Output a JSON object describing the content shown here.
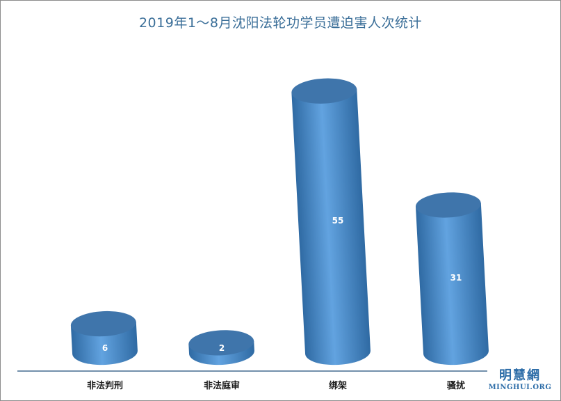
{
  "colors": {
    "title": "#3a6e98",
    "bar_dark": "#2f6aa3",
    "bar_light": "#62a3e0",
    "top_face": "#3f75ab",
    "axis": "#1f4e79",
    "watermark": "#2d6da8"
  },
  "watermark": {
    "cn": "明慧網",
    "en": "MINGHUI.ORG"
  },
  "chart_data": {
    "type": "bar",
    "style": "3d-cylinder",
    "title": "2019年1～8月沈阳法轮功学员遭迫害人次统计",
    "categories": [
      "非法判刑",
      "非法庭审",
      "绑架",
      "骚扰"
    ],
    "values": [
      6,
      2,
      55,
      31
    ],
    "data_labels": [
      "6",
      "2",
      "55",
      "31"
    ],
    "xlabel": "",
    "ylabel": "",
    "ylim": [
      0,
      60
    ],
    "grid": false,
    "legend": "none"
  }
}
